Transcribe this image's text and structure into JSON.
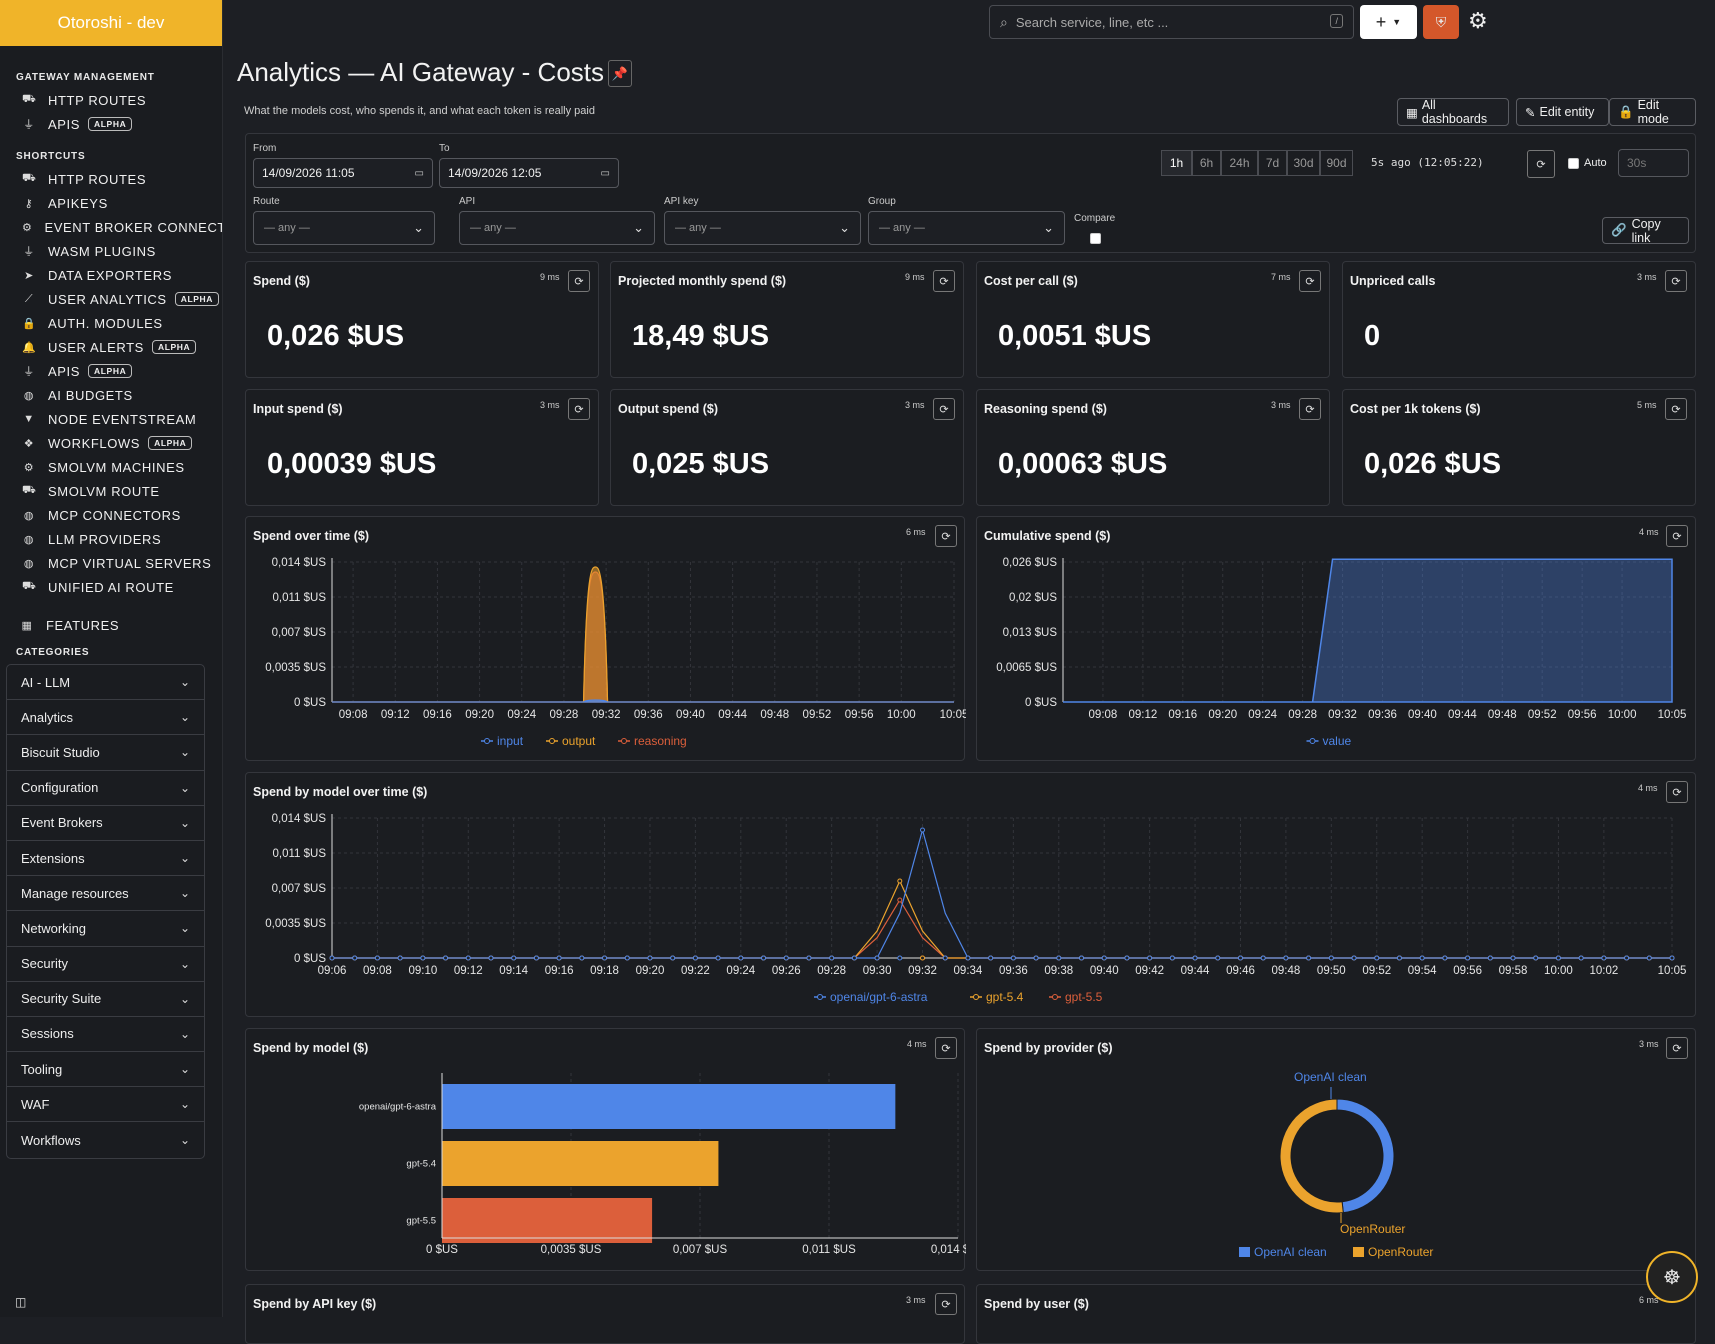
{
  "brand": "Otoroshi - dev",
  "sidebar": {
    "gateway_title": "GATEWAY MANAGEMENT",
    "gateway_items": [
      {
        "label": "HTTP ROUTES",
        "icon": "road-icon"
      },
      {
        "label": "APIS",
        "icon": "plug-icon",
        "badge": "ALPHA"
      }
    ],
    "shortcuts_title": "SHORTCUTS",
    "shortcuts": [
      {
        "label": "HTTP ROUTES",
        "icon": "road-icon"
      },
      {
        "label": "APIKEYS",
        "icon": "key-icon"
      },
      {
        "label": "EVENT BROKER CONNECTIONS",
        "icon": "gear-icon"
      },
      {
        "label": "WASM PLUGINS",
        "icon": "plug-icon"
      },
      {
        "label": "DATA EXPORTERS",
        "icon": "paper-plane-icon"
      },
      {
        "label": "USER ANALYTICS",
        "icon": "chart-line-icon",
        "badge": "ALPHA"
      },
      {
        "label": "AUTH. MODULES",
        "icon": "lock-icon"
      },
      {
        "label": "USER ALERTS",
        "icon": "bell-icon",
        "badge": "ALPHA"
      },
      {
        "label": "APIS",
        "icon": "plug-icon",
        "badge": "ALPHA"
      },
      {
        "label": "AI BUDGETS",
        "icon": "brain-icon"
      },
      {
        "label": "NODE EVENTSTREAM",
        "icon": "filter-icon"
      },
      {
        "label": "WORKFLOWS",
        "icon": "cubes-icon",
        "badge": "ALPHA"
      },
      {
        "label": "SMOLVM MACHINES",
        "icon": "cog-icon"
      },
      {
        "label": "SMOLVM ROUTE",
        "icon": "road-icon"
      },
      {
        "label": "MCP CONNECTORS",
        "icon": "brain-icon"
      },
      {
        "label": "LLM PROVIDERS",
        "icon": "brain-icon"
      },
      {
        "label": "MCP VIRTUAL SERVERS",
        "icon": "brain-icon"
      },
      {
        "label": "UNIFIED AI ROUTE",
        "icon": "road-icon"
      }
    ],
    "features_label": "FEATURES",
    "categories_title": "CATEGORIES",
    "categories": [
      "AI - LLM",
      "Analytics",
      "Biscuit Studio",
      "Configuration",
      "Event Brokers",
      "Extensions",
      "Manage resources",
      "Networking",
      "Security",
      "Security Suite",
      "Sessions",
      "Tooling",
      "WAF",
      "Workflows"
    ]
  },
  "topbar": {
    "search_placeholder": "Search service, line, etc ...",
    "search_shortcut": "/"
  },
  "page": {
    "title": "Analytics — AI Gateway - Costs",
    "subtitle": "What the models cost, who spends it, and what each token is really paid",
    "buttons": {
      "all_dashboards": "All dashboards",
      "edit_entity": "Edit entity",
      "edit_mode": "Edit mode"
    }
  },
  "filters": {
    "from_label": "From",
    "from_value": "14/09/2026 11:05",
    "to_label": "To",
    "to_value": "14/09/2026 12:05",
    "ranges": [
      "1h",
      "6h",
      "24h",
      "7d",
      "30d",
      "90d"
    ],
    "active_range": "1h",
    "last_refresh": "5s ago (12:05:22)",
    "auto_label": "Auto",
    "auto_interval_placeholder": "30s",
    "route_label": "Route",
    "api_label": "API",
    "apikey_label": "API key",
    "group_label": "Group",
    "any": "— any —",
    "compare_label": "Compare",
    "copy_link": "Copy link"
  },
  "kpis": [
    {
      "title": "Spend ($)",
      "ms": "9 ms",
      "value": "0,026 $US"
    },
    {
      "title": "Projected monthly spend ($)",
      "ms": "9 ms",
      "value": "18,49 $US"
    },
    {
      "title": "Cost per call ($)",
      "ms": "7 ms",
      "value": "0,0051 $US"
    },
    {
      "title": "Unpriced calls",
      "ms": "3 ms",
      "value": "0"
    },
    {
      "title": "Input spend ($)",
      "ms": "3 ms",
      "value": "0,00039 $US"
    },
    {
      "title": "Output spend ($)",
      "ms": "3 ms",
      "value": "0,025 $US"
    },
    {
      "title": "Reasoning spend ($)",
      "ms": "3 ms",
      "value": "0,00063 $US"
    },
    {
      "title": "Cost per 1k tokens ($)",
      "ms": "5 ms",
      "value": "0,026 $US"
    }
  ],
  "panels": {
    "spend_over_time": {
      "title": "Spend over time ($)",
      "ms": "6 ms"
    },
    "cumulative": {
      "title": "Cumulative spend ($)",
      "ms": "4 ms"
    },
    "by_model_time": {
      "title": "Spend by model over time ($)",
      "ms": "4 ms"
    },
    "by_model": {
      "title": "Spend by model ($)",
      "ms": "4 ms"
    },
    "by_provider": {
      "title": "Spend by provider ($)",
      "ms": "3 ms"
    },
    "by_apikey": {
      "title": "Spend by API key ($)",
      "ms": "3 ms"
    },
    "by_user": {
      "title": "Spend by user ($)",
      "ms": "6 ms"
    }
  },
  "colors": {
    "blue": "#4f86e8",
    "orange": "#eba32d",
    "red": "#dc5f3b"
  },
  "chart_data": [
    {
      "type": "area",
      "title": "Spend over time ($)",
      "x": [
        "09:08",
        "09:12",
        "09:16",
        "09:20",
        "09:24",
        "09:28",
        "09:32",
        "09:36",
        "09:40",
        "09:44",
        "09:48",
        "09:52",
        "09:56",
        "10:00",
        "10:05"
      ],
      "y_ticks": [
        "0 $US",
        "0,0035 $US",
        "0,007 $US",
        "0,011 $US",
        "0,014 $US"
      ],
      "ylim": [
        0,
        0.014
      ],
      "series": [
        {
          "name": "input",
          "color": "#4f86e8",
          "peak_x": "09:31",
          "peak": 0.0002
        },
        {
          "name": "output",
          "color": "#eba32d",
          "peak_x": "09:31",
          "peak": 0.0135
        },
        {
          "name": "reasoning",
          "color": "#dc5f3b",
          "peak_x": "09:31",
          "peak": 0.013
        }
      ]
    },
    {
      "type": "area",
      "title": "Cumulative spend ($)",
      "x": [
        "09:08",
        "09:12",
        "09:16",
        "09:20",
        "09:24",
        "09:28",
        "09:32",
        "09:36",
        "09:40",
        "09:44",
        "09:48",
        "09:52",
        "09:56",
        "10:00",
        "10:05"
      ],
      "y_ticks": [
        "0 $US",
        "0,0065 $US",
        "0,013 $US",
        "0,02 $US",
        "0,026 $US"
      ],
      "ylim": [
        0,
        0.026
      ],
      "series": [
        {
          "name": "value",
          "color": "#4f86e8",
          "before": 0,
          "after": 0.0265,
          "rise_from": "09:29",
          "rise_to": "09:31"
        }
      ]
    },
    {
      "type": "line",
      "title": "Spend by model over time ($)",
      "x": [
        "09:06",
        "09:08",
        "09:10",
        "09:12",
        "09:14",
        "09:16",
        "09:18",
        "09:20",
        "09:22",
        "09:24",
        "09:26",
        "09:28",
        "09:30",
        "09:32",
        "09:34",
        "09:36",
        "09:38",
        "09:40",
        "09:42",
        "09:44",
        "09:46",
        "09:48",
        "09:50",
        "09:52",
        "09:54",
        "09:56",
        "09:58",
        "10:00",
        "10:02",
        "10:05"
      ],
      "y_ticks": [
        "0 $US",
        "0,0035 $US",
        "0,007 $US",
        "0,011 $US",
        "0,014 $US"
      ],
      "ylim": [
        0,
        0.014
      ],
      "series": [
        {
          "name": "openai/gpt-6-astra",
          "color": "#4f86e8",
          "peak_x": "09:32",
          "peak": 0.0128
        },
        {
          "name": "gpt-5.4",
          "color": "#eba32d",
          "peak_x": "09:31",
          "peak": 0.0077
        },
        {
          "name": "gpt-5.5",
          "color": "#dc5f3b",
          "peak_x": "09:31",
          "peak": 0.0058
        }
      ]
    },
    {
      "type": "bar",
      "title": "Spend by model ($)",
      "categories": [
        "openai/gpt-6-astra",
        "gpt-5.4",
        "gpt-5.5"
      ],
      "values": [
        0.0123,
        0.0075,
        0.0057
      ],
      "colors": [
        "#4f86e8",
        "#eba32d",
        "#dc5f3b"
      ],
      "x_ticks": [
        "0 $US",
        "0,0035 $US",
        "0,007 $US",
        "0,011 $US",
        "0,014 $US"
      ],
      "xlim": [
        0,
        0.014
      ]
    },
    {
      "type": "pie",
      "title": "Spend by provider ($)",
      "labels": [
        "OpenAI clean",
        "OpenRouter"
      ],
      "values": [
        0.0123,
        0.0132
      ],
      "colors": [
        "#4f86e8",
        "#eba32d"
      ]
    }
  ]
}
